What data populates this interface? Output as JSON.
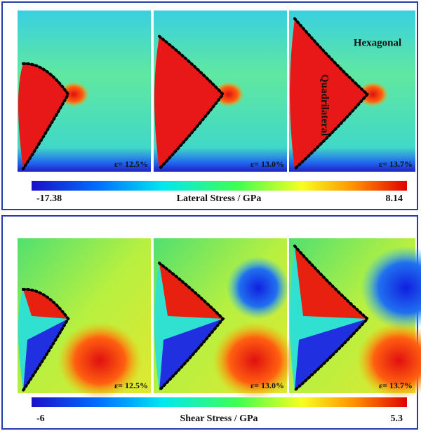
{
  "panels": [
    {
      "maps": [
        {
          "strain": "ε= 12.5%"
        },
        {
          "strain": "ε= 13.0%"
        },
        {
          "strain": "ε= 13.7%"
        }
      ],
      "annotations": {
        "right": "Hexagonal",
        "vertical": "Quadrilateral"
      },
      "colorbar": {
        "min_label": "-17.38",
        "title": "Lateral Stress / GPa",
        "max_label": "8.14"
      }
    },
    {
      "maps": [
        {
          "strain": "ε= 12.5%"
        },
        {
          "strain": "ε= 13.0%"
        },
        {
          "strain": "ε= 13.7%"
        }
      ],
      "colorbar": {
        "min_label": "-6",
        "title": "Shear Stress / GPa",
        "max_label": "5.3"
      }
    }
  ]
}
